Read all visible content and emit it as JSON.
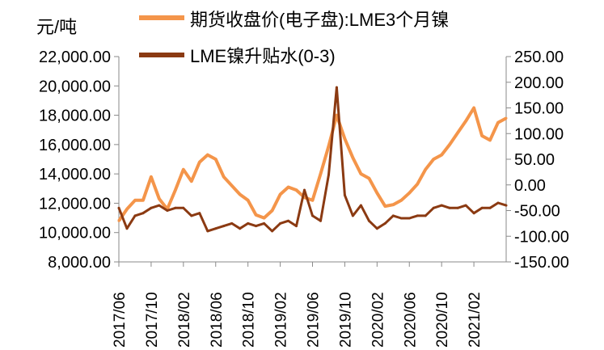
{
  "chart_data": {
    "type": "line",
    "title": "",
    "ylabel": "元/吨",
    "xlabel": "",
    "y_left": {
      "lim": [
        8000,
        22000
      ],
      "ticks": [
        "22,000.00",
        "20,000.00",
        "18,000.00",
        "16,000.00",
        "14,000.00",
        "12,000.00",
        "10,000.00",
        "8,000.00"
      ],
      "tick_values": [
        22000,
        20000,
        18000,
        16000,
        14000,
        12000,
        10000,
        8000
      ]
    },
    "y_right": {
      "lim": [
        -150,
        250
      ],
      "ticks": [
        "250.00",
        "200.00",
        "150.00",
        "100.00",
        "50.00",
        "0.00",
        "-50.00",
        "-100.00",
        "-150.00"
      ],
      "tick_values": [
        250,
        200,
        150,
        100,
        50,
        0,
        -50,
        -100,
        -150
      ]
    },
    "x_ticks": [
      "2017/06",
      "2017/10",
      "2018/02",
      "2018/06",
      "2018/10",
      "2019/02",
      "2019/06",
      "2019/10",
      "2020/02",
      "2020/06",
      "2020/10",
      "2021/02"
    ],
    "x_range": [
      "2017/06",
      "2021/06"
    ],
    "legend_position": "top",
    "series": [
      {
        "name": "期货收盘价(电子盘):LME3个月镍",
        "axis": "left",
        "color": "#F4954A",
        "x": [
          "2017/06",
          "2017/07",
          "2017/08",
          "2017/09",
          "2017/10",
          "2017/11",
          "2017/12",
          "2018/01",
          "2018/02",
          "2018/03",
          "2018/04",
          "2018/05",
          "2018/06",
          "2018/07",
          "2018/08",
          "2018/09",
          "2018/10",
          "2018/11",
          "2018/12",
          "2019/01",
          "2019/02",
          "2019/03",
          "2019/04",
          "2019/05",
          "2019/06",
          "2019/07",
          "2019/08",
          "2019/09",
          "2019/10",
          "2019/11",
          "2019/12",
          "2020/01",
          "2020/02",
          "2020/03",
          "2020/04",
          "2020/05",
          "2020/06",
          "2020/07",
          "2020/08",
          "2020/09",
          "2020/10",
          "2020/11",
          "2020/12",
          "2021/01",
          "2021/02",
          "2021/03",
          "2021/04",
          "2021/05",
          "2021/06"
        ],
        "values": [
          10800,
          11600,
          12200,
          12200,
          13800,
          12300,
          11600,
          12900,
          14300,
          13500,
          14800,
          15300,
          15000,
          13800,
          13200,
          12600,
          12200,
          11200,
          11000,
          11500,
          12600,
          13100,
          12900,
          12400,
          12200,
          14000,
          15900,
          18000,
          16400,
          15100,
          14000,
          13700,
          12700,
          11800,
          11900,
          12200,
          12700,
          13300,
          14300,
          15000,
          15300,
          16000,
          16800,
          17600,
          18500,
          16600,
          16300,
          17500,
          17800
        ]
      },
      {
        "name": "LME镍升贴水(0-3)",
        "axis": "right",
        "color": "#8B3A12",
        "x": [
          "2017/06",
          "2017/07",
          "2017/08",
          "2017/09",
          "2017/10",
          "2017/11",
          "2017/12",
          "2018/01",
          "2018/02",
          "2018/03",
          "2018/04",
          "2018/05",
          "2018/06",
          "2018/07",
          "2018/08",
          "2018/09",
          "2018/10",
          "2018/11",
          "2018/12",
          "2019/01",
          "2019/02",
          "2019/03",
          "2019/04",
          "2019/05",
          "2019/06",
          "2019/07",
          "2019/08",
          "2019/09",
          "2019/10",
          "2019/11",
          "2019/12",
          "2020/01",
          "2020/02",
          "2020/03",
          "2020/04",
          "2020/05",
          "2020/06",
          "2020/07",
          "2020/08",
          "2020/09",
          "2020/10",
          "2020/11",
          "2020/12",
          "2021/01",
          "2021/02",
          "2021/03",
          "2021/04",
          "2021/05",
          "2021/06"
        ],
        "values": [
          -45,
          -85,
          -60,
          -55,
          -45,
          -40,
          -50,
          -45,
          -45,
          -60,
          -55,
          -90,
          -85,
          -80,
          -75,
          -85,
          -75,
          -80,
          -75,
          -90,
          -75,
          -70,
          -80,
          -10,
          -60,
          -70,
          20,
          190,
          -20,
          -60,
          -40,
          -70,
          -85,
          -75,
          -60,
          -65,
          -65,
          -60,
          -60,
          -45,
          -40,
          -45,
          -45,
          -40,
          -55,
          -45,
          -45,
          -35,
          -40
        ]
      }
    ]
  }
}
